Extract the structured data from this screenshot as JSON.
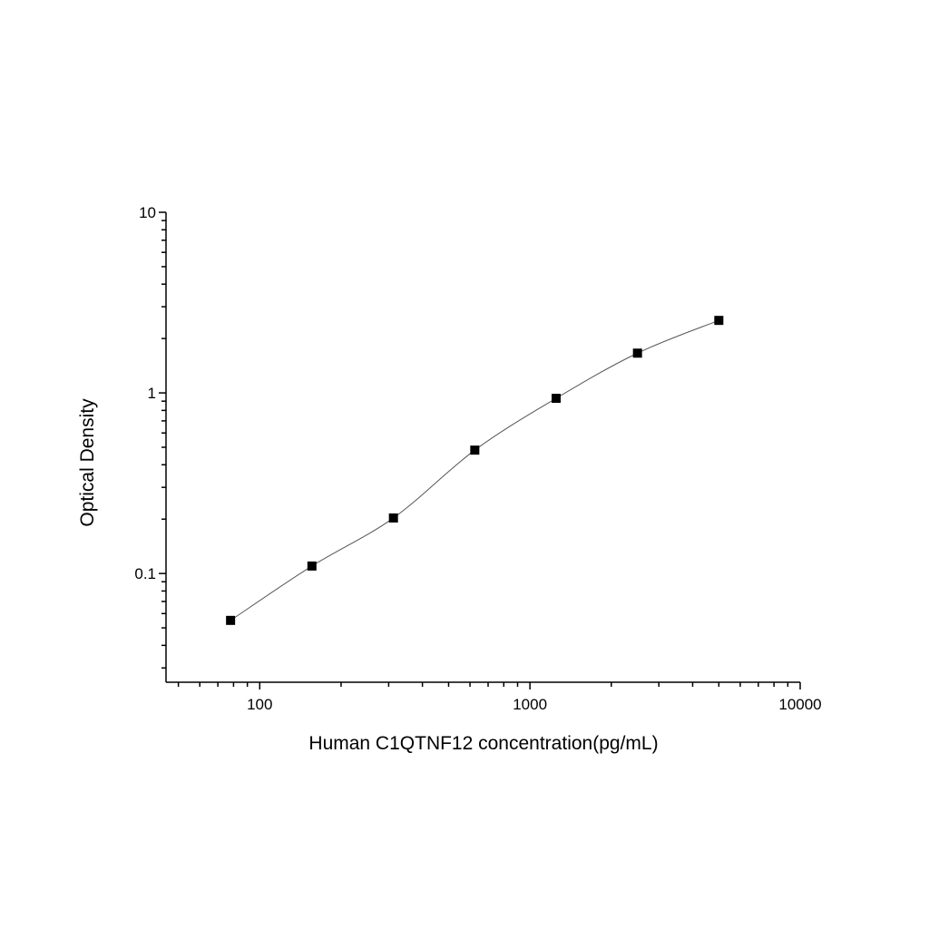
{
  "chart_data": {
    "type": "scatter",
    "title": "",
    "xlabel": "Human C1QTNF12 concentration(pg/mL)",
    "ylabel": "Optical Density",
    "xscale": "log",
    "yscale": "log",
    "xlim": [
      45,
      10000
    ],
    "ylim": [
      0.025,
      10
    ],
    "xticks": [
      "100",
      "1000",
      "10000"
    ],
    "yticks": [
      "0.1",
      "1",
      "10"
    ],
    "grid": false,
    "legend": "none",
    "marker_color": "#000000",
    "curve_color": "#555555",
    "fit_curve": true,
    "series": [
      {
        "x": [
          78,
          156,
          312.5,
          625,
          1250,
          2500,
          5000
        ],
        "y": [
          0.055,
          0.11,
          0.203,
          0.482,
          0.933,
          1.66,
          2.52
        ]
      }
    ]
  }
}
